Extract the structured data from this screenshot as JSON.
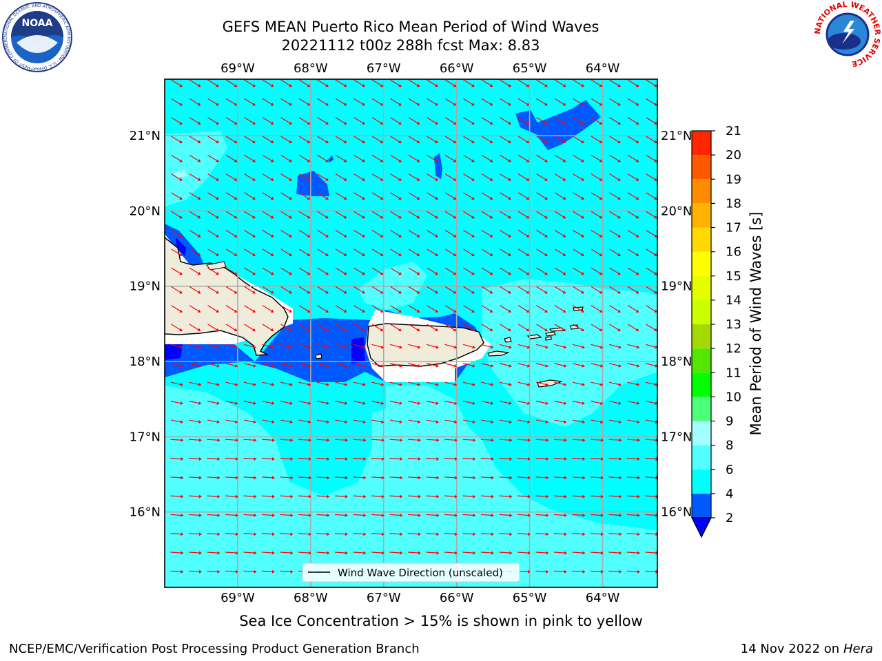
{
  "title": {
    "line1": "GEFS MEAN Puerto Rico Mean Period of Wind Waves",
    "line2": "20221112 t00z 288h fcst   Max: 8.83"
  },
  "map": {
    "lon_range": [
      -70.0,
      -63.25
    ],
    "lat_range": [
      15.0,
      21.75
    ],
    "lon_ticks": [
      {
        "value": -69,
        "label": "69°W"
      },
      {
        "value": -68,
        "label": "68°W"
      },
      {
        "value": -67,
        "label": "67°W"
      },
      {
        "value": -66,
        "label": "66°W"
      },
      {
        "value": -65,
        "label": "65°W"
      },
      {
        "value": -64,
        "label": "64°W"
      }
    ],
    "lat_ticks": [
      {
        "value": 21,
        "label": "21°N"
      },
      {
        "value": 20,
        "label": "20°N"
      },
      {
        "value": 19,
        "label": "19°N"
      },
      {
        "value": 18,
        "label": "18°N"
      },
      {
        "value": 17,
        "label": "17°N"
      },
      {
        "value": 16,
        "label": "16°N"
      }
    ],
    "grid": true,
    "background_period_range_s": "6-8",
    "legend": {
      "label": "Wind Wave Direction (unscaled)",
      "placement": "bottom-center"
    },
    "arrow_color": "#ff0000",
    "land_color": "#efecdc"
  },
  "colorbar": {
    "label": "Mean Period of Wind Waves [s]",
    "levels": [
      2,
      4,
      6,
      8,
      9,
      10,
      11,
      12,
      13,
      14,
      15,
      16,
      17,
      18,
      19,
      20,
      21
    ],
    "colors": [
      "#0059ff",
      "#00ffff",
      "#52ffff",
      "#a3ffff",
      "#4dff7a",
      "#00ff00",
      "#52e600",
      "#a3d900",
      "#ccff00",
      "#e6ff00",
      "#ffff00",
      "#ffd900",
      "#ffb300",
      "#ff8c00",
      "#ff5900",
      "#ff2600"
    ],
    "extend_color": "#0000ff"
  },
  "caption": "Sea Ice Concentration > 15% is shown in pink to yellow",
  "footer": {
    "left": "NCEP/EMC/Verification Post Processing Product Generation Branch",
    "right_date": "14 Nov 2022 on",
    "right_machine": "Hera"
  },
  "logos": {
    "noaa_text": "NOAA",
    "noaa_ring": "NATIONAL OCEANIC AND ATMOSPHERIC ADMINISTRATION · U.S. DEPARTMENT OF COMMERCE",
    "nws_ring": "NATIONAL WEATHER SERVICE"
  }
}
